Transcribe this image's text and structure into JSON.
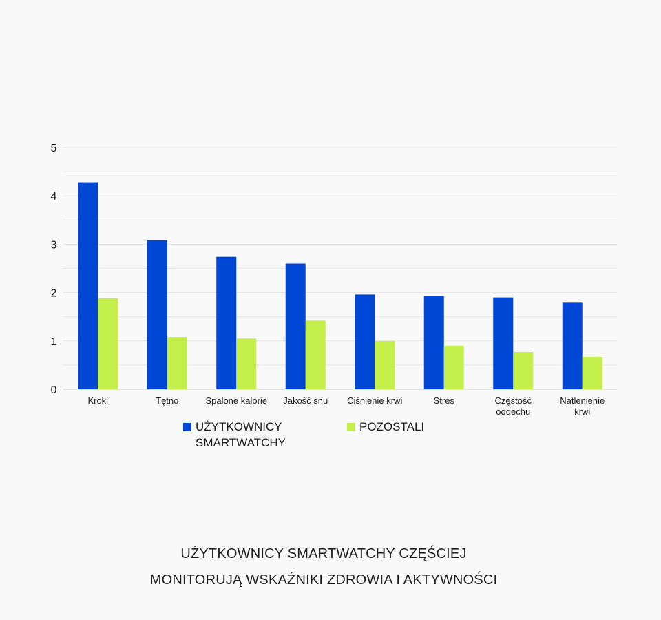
{
  "chart_data": {
    "type": "bar",
    "categories": [
      "Kroki",
      "Tętno",
      "Spalone kalorie",
      "Jakość snu",
      "Ciśnienie krwi",
      "Stres",
      "Częstość\noddechu",
      "Natlenienie\nkrwi"
    ],
    "series": [
      {
        "name": "UŻYTKOWNICY SMARTWATCHY",
        "values": [
          4.28,
          3.08,
          2.74,
          2.6,
          1.96,
          1.93,
          1.9,
          1.79
        ],
        "color": "#0047d6"
      },
      {
        "name": "POZOSTALI",
        "values": [
          1.88,
          1.08,
          1.05,
          1.42,
          1.0,
          0.9,
          0.77,
          0.67
        ],
        "color": "#c4ee4a"
      }
    ],
    "ylim": [
      0,
      5
    ],
    "yticks": [
      "0",
      "1",
      "2",
      "3",
      "4",
      "5"
    ],
    "grid": true,
    "legend_position": "bottom"
  },
  "legend": {
    "series1": "UŻYTKOWNICY SMARTWATCHY",
    "series2": "POZOSTALI",
    "color1": "#0047d6",
    "color2": "#c4ee4a"
  },
  "footer": {
    "line1": "UŻYTKOWNICY SMARTWATCHY CZĘŚCIEJ",
    "line2": "MONITORUJĄ WSKAŹNIKI ZDROWIA I AKTYWNOŚCI"
  }
}
